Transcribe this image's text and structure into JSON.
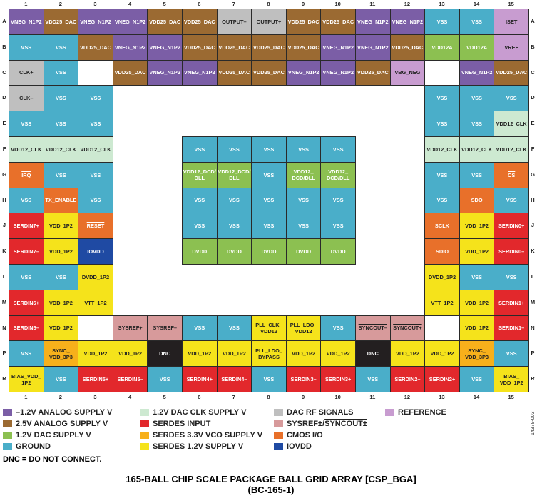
{
  "colors": {
    "N12": "#7b5ea6",
    "A25": "#9b6a32",
    "D12": "#8cc051",
    "GND": "#4aaec9",
    "CLK": "#cde9d1",
    "SER": "#e2282c",
    "S33": "#f7b01b",
    "S12": "#f5e31b",
    "RF": "#bfbfbf",
    "SYS": "#d79a9b",
    "CMO": "#e8702a",
    "IOV": "#1f4aa3",
    "REF": "#c89cd0",
    "DNC": "#231f20"
  },
  "columns": [
    "1",
    "2",
    "3",
    "4",
    "5",
    "6",
    "7",
    "8",
    "9",
    "10",
    "11",
    "12",
    "13",
    "14",
    "15"
  ],
  "rows": [
    "A",
    "B",
    "C",
    "D",
    "E",
    "F",
    "G",
    "H",
    "J",
    "K",
    "L",
    "M",
    "N",
    "P",
    "R"
  ],
  "balls": {
    "A1": {
      "t": "VNEG_N1P2",
      "c": "N12"
    },
    "A2": {
      "t": "VDD25_DAC",
      "c": "A25"
    },
    "A3": {
      "t": "VNEG_N1P2",
      "c": "N12"
    },
    "A4": {
      "t": "VNEG_N1P2",
      "c": "N12"
    },
    "A5": {
      "t": "VDD25_DAC",
      "c": "A25"
    },
    "A6": {
      "t": "VDD25_DAC",
      "c": "A25"
    },
    "A7": {
      "t": "OUTPUT–",
      "c": "RF"
    },
    "A8": {
      "t": "OUTPUT+",
      "c": "RF"
    },
    "A9": {
      "t": "VDD25_DAC",
      "c": "A25"
    },
    "A10": {
      "t": "VDD25_DAC",
      "c": "A25"
    },
    "A11": {
      "t": "VNEG_N1P2",
      "c": "N12"
    },
    "A12": {
      "t": "VNEG_N1P2",
      "c": "N12"
    },
    "A13": {
      "t": "VSS",
      "c": "GND"
    },
    "A14": {
      "t": "VSS",
      "c": "GND"
    },
    "A15": {
      "t": "ISET",
      "c": "REF"
    },
    "B1": {
      "t": "VSS",
      "c": "GND"
    },
    "B2": {
      "t": "VSS",
      "c": "GND"
    },
    "B3": {
      "t": "VDD25_DAC",
      "c": "A25"
    },
    "B4": {
      "t": "VNEG_N1P2",
      "c": "N12"
    },
    "B5": {
      "t": "VNEG_N1P2",
      "c": "N12"
    },
    "B6": {
      "t": "VDD25_DAC",
      "c": "A25"
    },
    "B7": {
      "t": "VDD25_DAC",
      "c": "A25"
    },
    "B8": {
      "t": "VDD25_DAC",
      "c": "A25"
    },
    "B9": {
      "t": "VDD25_DAC",
      "c": "A25"
    },
    "B10": {
      "t": "VNEG_N1P2",
      "c": "N12"
    },
    "B11": {
      "t": "VNEG_N1P2",
      "c": "N12"
    },
    "B12": {
      "t": "VDD25_DAC",
      "c": "A25"
    },
    "B13": {
      "t": "VDD12A",
      "c": "D12"
    },
    "B14": {
      "t": "VDD12A",
      "c": "D12"
    },
    "B15": {
      "t": "VREF",
      "c": "REF"
    },
    "C1": {
      "t": "CLK+",
      "c": "RF"
    },
    "C2": {
      "t": "VSS",
      "c": "GND"
    },
    "C4": {
      "t": "VDD25_DAC",
      "c": "A25"
    },
    "C5": {
      "t": "VNEG_N1P2",
      "c": "N12"
    },
    "C6": {
      "t": "VNEG_N1P2",
      "c": "N12"
    },
    "C7": {
      "t": "VDD25_DAC",
      "c": "A25"
    },
    "C8": {
      "t": "VDD25_DAC",
      "c": "A25"
    },
    "C9": {
      "t": "VNEG_N1P2",
      "c": "N12"
    },
    "C10": {
      "t": "VNEG_N1P2",
      "c": "N12"
    },
    "C11": {
      "t": "VDD25_DAC",
      "c": "A25"
    },
    "C12": {
      "t": "VBG_NEG",
      "c": "REF"
    },
    "C14": {
      "t": "VNEG_N1P2",
      "c": "N12"
    },
    "C15": {
      "t": "VDD25_DAC",
      "c": "A25"
    },
    "D1": {
      "t": "CLK–",
      "c": "RF"
    },
    "D2": {
      "t": "VSS",
      "c": "GND"
    },
    "D3": {
      "t": "VSS",
      "c": "GND"
    },
    "D13": {
      "t": "VSS",
      "c": "GND"
    },
    "D14": {
      "t": "VSS",
      "c": "GND"
    },
    "D15": {
      "t": "VSS",
      "c": "GND"
    },
    "E1": {
      "t": "VSS",
      "c": "GND"
    },
    "E2": {
      "t": "VSS",
      "c": "GND"
    },
    "E3": {
      "t": "VSS",
      "c": "GND"
    },
    "E13": {
      "t": "VSS",
      "c": "GND"
    },
    "E14": {
      "t": "VSS",
      "c": "GND"
    },
    "E15": {
      "t": "VDD12_CLK",
      "c": "CLK"
    },
    "F1": {
      "t": "VDD12_CLK",
      "c": "CLK"
    },
    "F2": {
      "t": "VDD12_CLK",
      "c": "CLK"
    },
    "F3": {
      "t": "VDD12_CLK",
      "c": "CLK"
    },
    "F6": {
      "t": "VSS",
      "c": "GND"
    },
    "F7": {
      "t": "VSS",
      "c": "GND"
    },
    "F8": {
      "t": "VSS",
      "c": "GND"
    },
    "F9": {
      "t": "VSS",
      "c": "GND"
    },
    "F10": {
      "t": "VSS",
      "c": "GND"
    },
    "F13": {
      "t": "VDD12_CLK",
      "c": "CLK"
    },
    "F14": {
      "t": "VDD12_CLK",
      "c": "CLK"
    },
    "F15": {
      "t": "VDD12_CLK",
      "c": "CLK"
    },
    "G1": {
      "t": "IRQ",
      "c": "CMO",
      "o": true
    },
    "G2": {
      "t": "VSS",
      "c": "GND"
    },
    "G3": {
      "t": "VSS",
      "c": "GND"
    },
    "G6": {
      "t": "VDD12_DCD/\nDLL",
      "c": "D12"
    },
    "G7": {
      "t": "VDD12_DCD/\nDLL",
      "c": "D12"
    },
    "G8": {
      "t": "VSS",
      "c": "GND"
    },
    "G9": {
      "t": "VDD12_\nDCD/DLL",
      "c": "D12"
    },
    "G10": {
      "t": "VDD12_\nDCD/DLL",
      "c": "D12"
    },
    "G13": {
      "t": "VSS",
      "c": "GND"
    },
    "G14": {
      "t": "VSS",
      "c": "GND"
    },
    "G15": {
      "t": "CS",
      "c": "CMO",
      "o": true
    },
    "H1": {
      "t": "VSS",
      "c": "GND"
    },
    "H2": {
      "t": "TX_ENABLE",
      "c": "CMO"
    },
    "H3": {
      "t": "VSS",
      "c": "GND"
    },
    "H6": {
      "t": "VSS",
      "c": "GND"
    },
    "H7": {
      "t": "VSS",
      "c": "GND"
    },
    "H8": {
      "t": "VSS",
      "c": "GND"
    },
    "H9": {
      "t": "VSS",
      "c": "GND"
    },
    "H10": {
      "t": "VSS",
      "c": "GND"
    },
    "H13": {
      "t": "VSS",
      "c": "GND"
    },
    "H14": {
      "t": "SDO",
      "c": "CMO"
    },
    "H15": {
      "t": "VSS",
      "c": "GND"
    },
    "J1": {
      "t": "SERDIN7+",
      "c": "SER"
    },
    "J2": {
      "t": "VDD_1P2",
      "c": "S12"
    },
    "J3": {
      "t": "RESET",
      "c": "CMO",
      "o": true
    },
    "J6": {
      "t": "VSS",
      "c": "GND"
    },
    "J7": {
      "t": "VSS",
      "c": "GND"
    },
    "J8": {
      "t": "VSS",
      "c": "GND"
    },
    "J9": {
      "t": "VSS",
      "c": "GND"
    },
    "J10": {
      "t": "VSS",
      "c": "GND"
    },
    "J13": {
      "t": "SCLK",
      "c": "CMO"
    },
    "J14": {
      "t": "VDD_1P2",
      "c": "S12"
    },
    "J15": {
      "t": "SERDIN0+",
      "c": "SER"
    },
    "K1": {
      "t": "SERDIN7–",
      "c": "SER"
    },
    "K2": {
      "t": "VDD_1P2",
      "c": "S12"
    },
    "K3": {
      "t": "IOVDD",
      "c": "IOV"
    },
    "K6": {
      "t": "DVDD",
      "c": "D12"
    },
    "K7": {
      "t": "DVDD",
      "c": "D12"
    },
    "K8": {
      "t": "DVDD",
      "c": "D12"
    },
    "K9": {
      "t": "DVDD",
      "c": "D12"
    },
    "K10": {
      "t": "DVDD",
      "c": "D12"
    },
    "K13": {
      "t": "SDIO",
      "c": "CMO"
    },
    "K14": {
      "t": "VDD_1P2",
      "c": "S12"
    },
    "K15": {
      "t": "SERDIN0–",
      "c": "SER"
    },
    "L1": {
      "t": "VSS",
      "c": "GND"
    },
    "L2": {
      "t": "VSS",
      "c": "GND"
    },
    "L3": {
      "t": "DVDD_1P2",
      "c": "S12"
    },
    "L13": {
      "t": "DVDD_1P2",
      "c": "S12"
    },
    "L14": {
      "t": "VSS",
      "c": "GND"
    },
    "L15": {
      "t": "VSS",
      "c": "GND"
    },
    "M1": {
      "t": "SERDIN6+",
      "c": "SER"
    },
    "M2": {
      "t": "VDD_1P2",
      "c": "S12"
    },
    "M3": {
      "t": "VTT_1P2",
      "c": "S12"
    },
    "M13": {
      "t": "VTT_1P2",
      "c": "S12"
    },
    "M14": {
      "t": "VDD_1P2",
      "c": "S12"
    },
    "M15": {
      "t": "SERDIN1+",
      "c": "SER"
    },
    "N1": {
      "t": "SERDIN6–",
      "c": "SER"
    },
    "N2": {
      "t": "VDD_1P2",
      "c": "S12"
    },
    "N4": {
      "t": "SYSREF+",
      "c": "SYS"
    },
    "N5": {
      "t": "SYSREF–",
      "c": "SYS"
    },
    "N6": {
      "t": "VSS",
      "c": "GND"
    },
    "N7": {
      "t": "VSS",
      "c": "GND"
    },
    "N8": {
      "t": "PLL_CLK_\nVDD12",
      "c": "S12"
    },
    "N9": {
      "t": "PLL_LDO_\nVDD12",
      "c": "S12"
    },
    "N10": {
      "t": "VSS",
      "c": "GND"
    },
    "N11": {
      "t": "SYNCOUT–",
      "c": "SYS",
      "o": true
    },
    "N12": {
      "t": "SYNCOUT+",
      "c": "SYS",
      "o": true
    },
    "N14": {
      "t": "VDD_1P2",
      "c": "S12"
    },
    "N15": {
      "t": "SERDIN1–",
      "c": "SER"
    },
    "P1": {
      "t": "VSS",
      "c": "GND"
    },
    "P2": {
      "t": "SYNC_\nVDD_3P3",
      "c": "S33"
    },
    "P3": {
      "t": "VDD_1P2",
      "c": "S12"
    },
    "P4": {
      "t": "VDD_1P2",
      "c": "S12"
    },
    "P5": {
      "t": "DNC",
      "c": "DNC"
    },
    "P6": {
      "t": "VDD_1P2",
      "c": "S12"
    },
    "P7": {
      "t": "VDD_1P2",
      "c": "S12"
    },
    "P8": {
      "t": "PLL_LDO_\nBYPASS",
      "c": "S12"
    },
    "P9": {
      "t": "VDD_1P2",
      "c": "S12"
    },
    "P10": {
      "t": "VDD_1P2",
      "c": "S12"
    },
    "P11": {
      "t": "DNC",
      "c": "DNC"
    },
    "P12": {
      "t": "VDD_1P2",
      "c": "S12"
    },
    "P13": {
      "t": "VDD_1P2",
      "c": "S12"
    },
    "P14": {
      "t": "SYNC_\nVDD_3P3",
      "c": "S33"
    },
    "P15": {
      "t": "VSS",
      "c": "GND"
    },
    "R1": {
      "t": "BIAS_VDD_\n1P2",
      "c": "S12"
    },
    "R2": {
      "t": "VSS",
      "c": "GND"
    },
    "R3": {
      "t": "SERDIN5+",
      "c": "SER"
    },
    "R4": {
      "t": "SERDIN5–",
      "c": "SER"
    },
    "R5": {
      "t": "VSS",
      "c": "GND"
    },
    "R6": {
      "t": "SERDIN4+",
      "c": "SER"
    },
    "R7": {
      "t": "SERDIN4–",
      "c": "SER"
    },
    "R8": {
      "t": "VSS",
      "c": "GND"
    },
    "R9": {
      "t": "SERDIN3–",
      "c": "SER"
    },
    "R10": {
      "t": "SERDIN3+",
      "c": "SER"
    },
    "R11": {
      "t": "VSS",
      "c": "GND"
    },
    "R12": {
      "t": "SERDIN2–",
      "c": "SER"
    },
    "R13": {
      "t": "SERDIN2+",
      "c": "SER"
    },
    "R14": {
      "t": "VSS",
      "c": "GND"
    },
    "R15": {
      "t": "BIAS_\nVDD_1P2",
      "c": "S12"
    }
  },
  "legend": [
    {
      "label": "–1.2V ANALOG SUPPLY V",
      "c": "N12"
    },
    {
      "label": "2.5V ANALOG SUPPLY V",
      "c": "A25"
    },
    {
      "label": "1.2V DAC SUPPLY V",
      "c": "D12"
    },
    {
      "label": "GROUND",
      "c": "GND"
    },
    {
      "label": "1.2V DAC CLK SUPPLY V",
      "c": "CLK"
    },
    {
      "label": "SERDES INPUT",
      "c": "SER"
    },
    {
      "label": "SERDES 3.3V VCO SUPPLY V",
      "c": "S33"
    },
    {
      "label": "SERDES 1.2V SUPPLY V",
      "c": "S12"
    },
    {
      "label": "DAC RF SIGNALS",
      "c": "RF"
    },
    {
      "label": "SYSREF±/",
      "overline": "SYNCOUT±",
      "c": "SYS"
    },
    {
      "label": "CMOS  I/O",
      "c": "CMO"
    },
    {
      "label": "IOVDD",
      "c": "IOV"
    },
    {
      "label": "REFERENCE",
      "c": "REF"
    }
  ],
  "note": "DNC = DO NOT CONNECT.",
  "figure_number": "14379-003",
  "title_line1": "165-BALL CHIP SCALE PACKAGE BALL GRID ARRAY [CSP_BGA]",
  "title_line2": "(BC-165-1)"
}
